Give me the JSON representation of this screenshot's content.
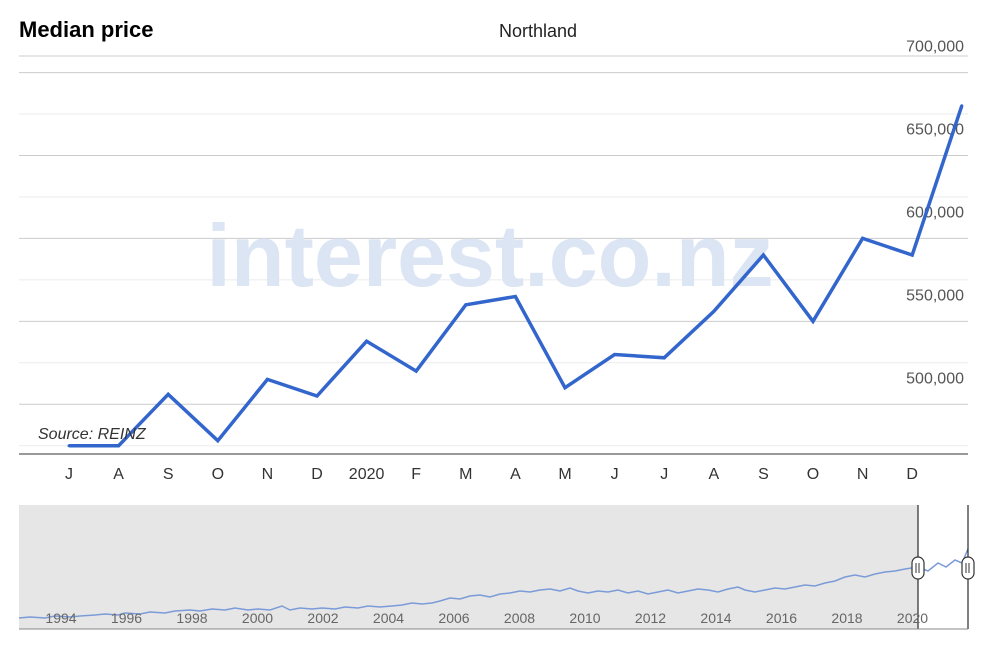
{
  "header": {
    "title": "Median price",
    "subtitle": "Northland"
  },
  "watermark": "interest.co.nz",
  "source_label": "Source: REINZ",
  "chart_data": {
    "type": "line",
    "title": "Northland",
    "ylim": [
      470000,
      710000
    ],
    "y_ticks": [
      500000,
      550000,
      600000,
      650000,
      700000
    ],
    "y_tick_labels": [
      "500,000",
      "550,000",
      "600,000",
      "650,000",
      "700,000"
    ],
    "x_tick_labels": [
      "J",
      "A",
      "S",
      "O",
      "N",
      "D",
      "2020",
      "F",
      "M",
      "A",
      "M",
      "J",
      "J",
      "A",
      "S",
      "O",
      "N",
      "D"
    ],
    "series": [
      {
        "values": [
          475000,
          475000,
          506000,
          478000,
          515000,
          505000,
          538000,
          520000,
          560000,
          565000,
          510000,
          530000,
          528000,
          556000,
          590000,
          550000,
          600000,
          590000,
          680000
        ],
        "color": "#3366cc"
      }
    ],
    "grid": true,
    "y_axis_position": "right"
  },
  "navigator": {
    "year_labels": [
      "1994",
      "1996",
      "1998",
      "2000",
      "2002",
      "2004",
      "2006",
      "2008",
      "2010",
      "2012",
      "2014",
      "2016",
      "2018",
      "2020"
    ],
    "selected_range": "Jul 2019 to Jan 2021"
  }
}
